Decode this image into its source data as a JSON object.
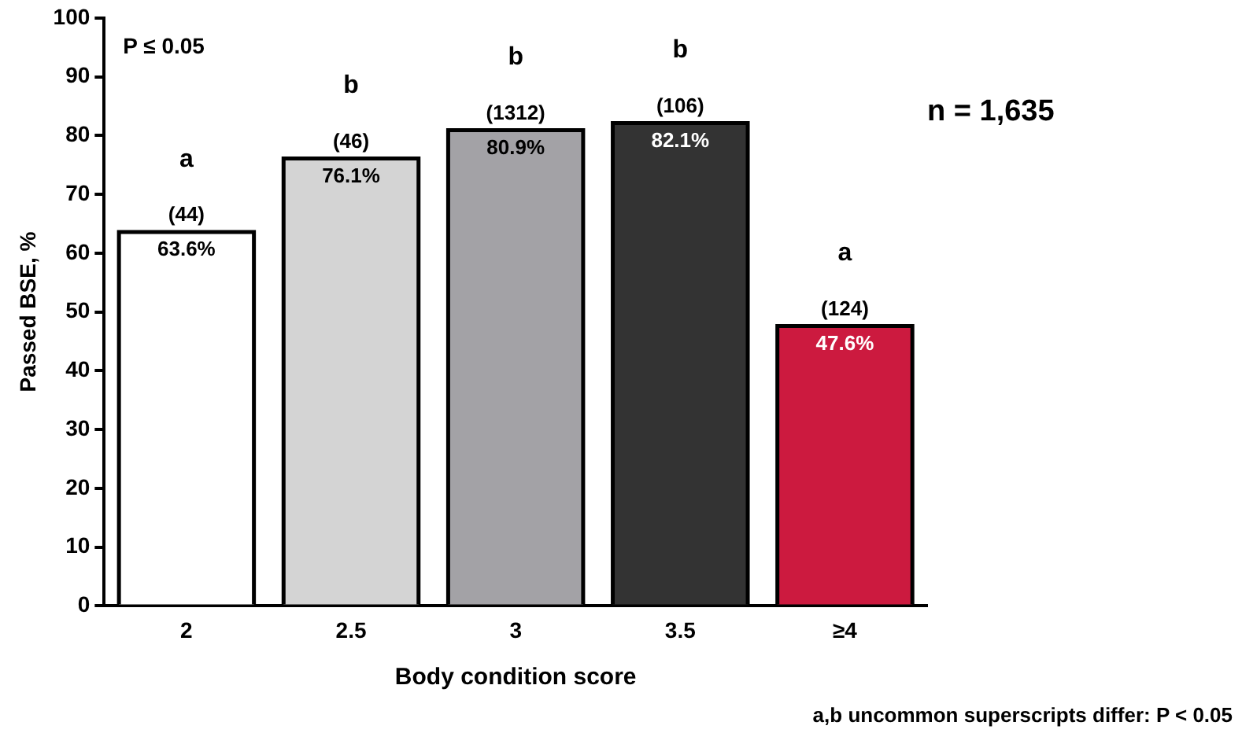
{
  "chart_data": {
    "type": "bar",
    "xlabel": "Body condition score",
    "ylabel": "Passed BSE, %",
    "categories": [
      "2",
      "2.5",
      "3",
      "3.5",
      "≥4"
    ],
    "values": [
      63.6,
      76.1,
      80.9,
      82.1,
      47.6
    ],
    "colors": [
      "#ffffff",
      "#d4d4d4",
      "#a3a2a6",
      "#333333",
      "#cc1a3f"
    ],
    "value_labels": [
      "63.6%",
      "76.1%",
      "80.9%",
      "82.1%",
      "47.6%"
    ],
    "ylim": [
      0,
      100
    ],
    "yticks": [
      0,
      10,
      20,
      30,
      40,
      50,
      60,
      70,
      80,
      90,
      100
    ],
    "grid": false,
    "legend": false,
    "annotations": [
      "P ≤ 0.05",
      "n = 1,635",
      "a,b uncommon superscripts differ: P < 0.05",
      {
        "text": "(44)",
        "x": "2",
        "y": 63.6
      },
      {
        "text": "a",
        "x": "2",
        "y": 63.6
      },
      {
        "text": "(46)",
        "x": "2.5",
        "y": 76.1
      },
      {
        "text": "b",
        "x": "2.5",
        "y": 76.1
      },
      {
        "text": "(1312)",
        "x": "3",
        "y": 80.9
      },
      {
        "text": "b",
        "x": "3",
        "y": 80.9
      },
      {
        "text": "(106)",
        "x": "3.5",
        "y": 82.1
      },
      {
        "text": "b",
        "x": "3.5",
        "y": 82.1
      },
      {
        "text": "(124)",
        "x": "≥4",
        "y": 47.6
      },
      {
        "text": "a",
        "x": "≥4",
        "y": 47.6
      }
    ]
  }
}
